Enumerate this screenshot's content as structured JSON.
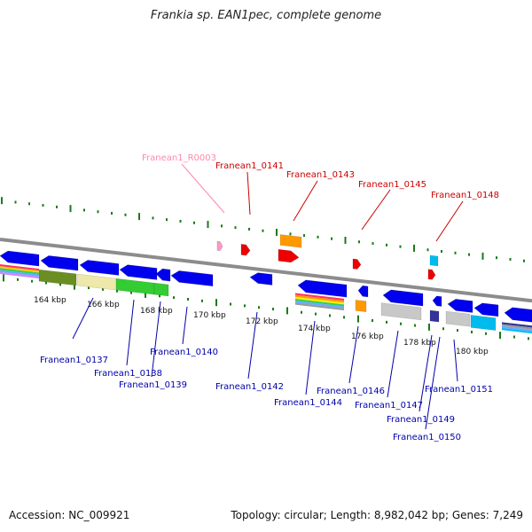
{
  "header": {
    "title": "Frankia sp. EAN1pec, complete genome"
  },
  "footer": {
    "accession": "Accession: NC_009921",
    "summary": "Topology: circular; Length: 8,982,042 bp; Genes: 7,249"
  },
  "colors": {
    "backbone": "#8c8c8c",
    "tick": "#1a7a1a",
    "forward_label": "#cc0000",
    "reverse_label": "#0000aa",
    "rna_label": "#ff88aa",
    "gene_blue": "#0000ee",
    "gene_red": "#ee0000",
    "gene_orange": "#ff9900",
    "gene_gray": "#c8c8c8",
    "gene_cyan": "#00bbee",
    "gene_navy": "#333399",
    "gene_pink": "#ff99cc",
    "gene_green": "#33cc33",
    "gene_olive": "#6b8e23",
    "gene_khaki": "#eee8aa"
  },
  "scale_labels": [
    {
      "text": "164 kbp"
    },
    {
      "text": "166 kbp"
    },
    {
      "text": "168 kbp"
    },
    {
      "text": "170 kbp"
    },
    {
      "text": "172 kbp"
    },
    {
      "text": "174 kbp"
    },
    {
      "text": "176 kbp"
    },
    {
      "text": "178 kbp"
    },
    {
      "text": "180 kbp"
    }
  ],
  "forward_labels": [
    {
      "text": "Franean1_R0003",
      "kind": "rna"
    },
    {
      "text": "Franean1_0141",
      "kind": "forward"
    },
    {
      "text": "Franean1_0143",
      "kind": "forward"
    },
    {
      "text": "Franean1_0145",
      "kind": "forward"
    },
    {
      "text": "Franean1_0148",
      "kind": "forward"
    }
  ],
  "reverse_labels": [
    {
      "text": "Franean1_0137"
    },
    {
      "text": "Franean1_0138"
    },
    {
      "text": "Franean1_0139"
    },
    {
      "text": "Franean1_0140"
    },
    {
      "text": "Franean1_0142"
    },
    {
      "text": "Franean1_0144"
    },
    {
      "text": "Franean1_0146"
    },
    {
      "text": "Franean1_0147"
    },
    {
      "text": "Franean1_0149"
    },
    {
      "text": "Franean1_0150"
    },
    {
      "text": "Franean1_0151"
    }
  ]
}
